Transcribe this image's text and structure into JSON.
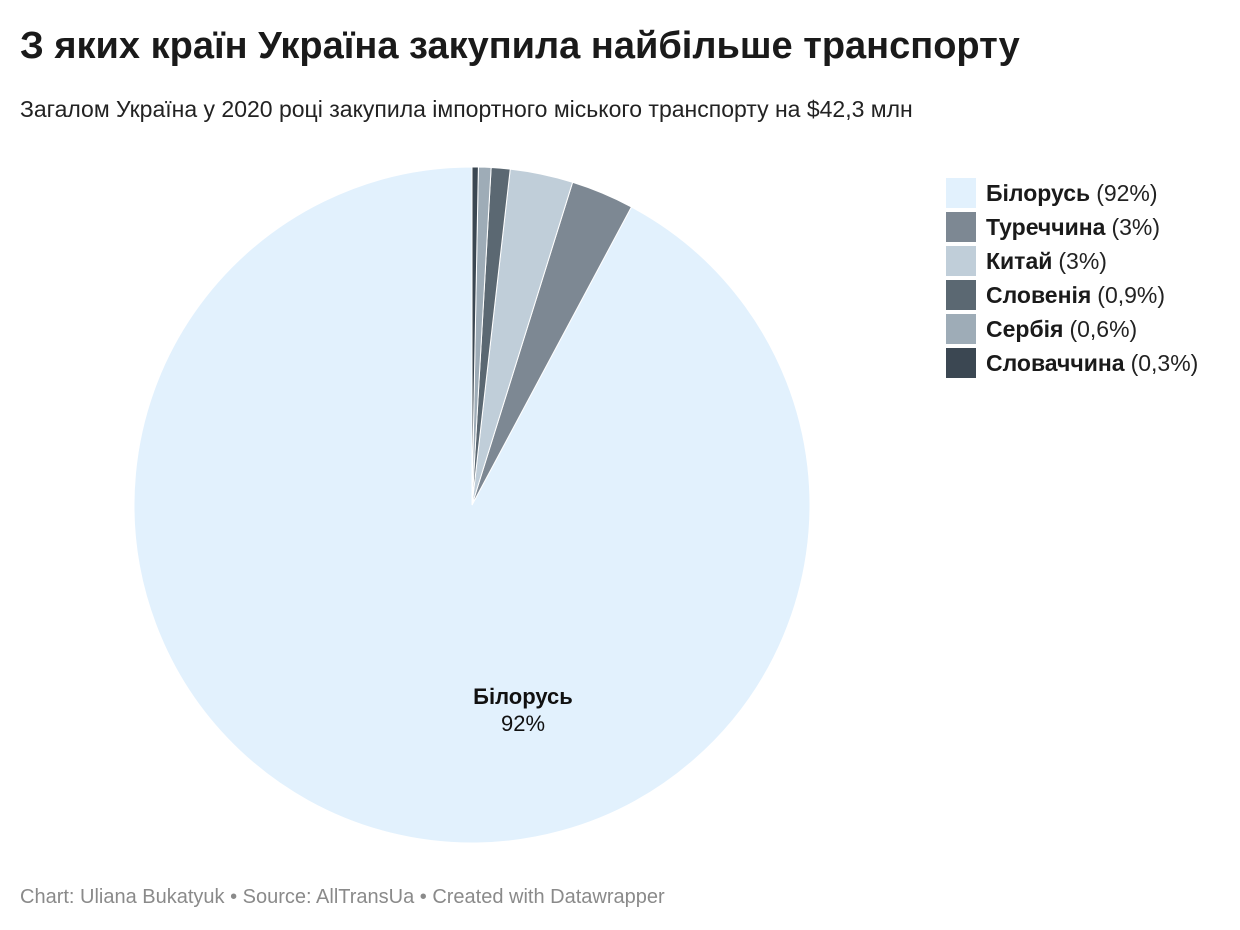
{
  "header": {
    "title": "З яких країн Україна закупила найбільше транспорту",
    "subtitle": "Загалом Україна у 2020 році закупила імпортного міського транспорту на $42,3 млн"
  },
  "chart_data": {
    "type": "pie",
    "title": "З яких країн Україна закупила найбільше транспорту",
    "subtitle": "Загалом Україна у 2020 році закупила імпортного міського транспорту на $42,3 млн",
    "unit": "%",
    "legend_position": "right",
    "slices": [
      {
        "name": "Білорусь",
        "value": 92,
        "label": "(92%)",
        "color": "#e2f1fd"
      },
      {
        "name": "Туреччина",
        "value": 3,
        "label": "(3%)",
        "color": "#7d8893"
      },
      {
        "name": "Китай",
        "value": 3,
        "label": "(3%)",
        "color": "#c0ced9"
      },
      {
        "name": "Словенія",
        "value": 0.9,
        "label": "(0,9%)",
        "color": "#5b6872"
      },
      {
        "name": "Сербія",
        "value": 0.6,
        "label": "(0,6%)",
        "color": "#9eacb7"
      },
      {
        "name": "Словаччина",
        "value": 0.3,
        "label": "(0,3%)",
        "color": "#3b4752"
      }
    ],
    "data_labels": [
      {
        "name": "Білорусь",
        "value": "92%"
      }
    ]
  },
  "footer": {
    "text": "Chart: Uliana Bukatyuk • Source: AllTransUa • Created with Datawrapper"
  }
}
